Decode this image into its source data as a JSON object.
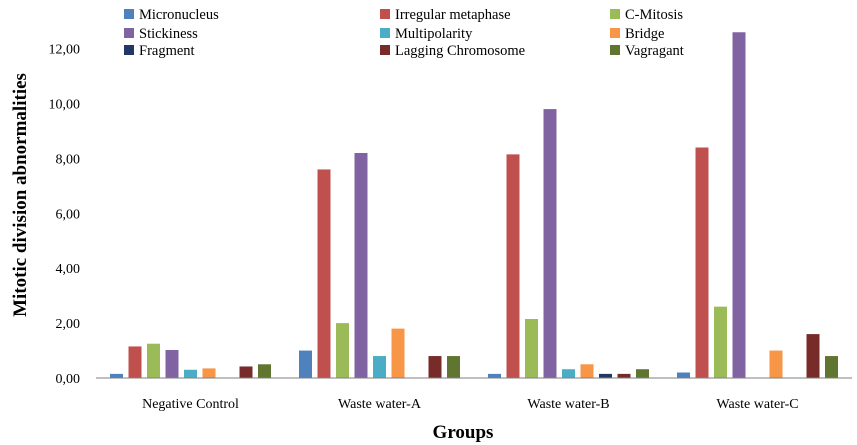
{
  "chart_data": {
    "type": "bar",
    "title": "",
    "xlabel": "Groups",
    "ylabel": "Mitotic division abnormalities",
    "categories": [
      "Negative Control",
      "Waste water-A",
      "Waste water-B",
      "Waste water-C"
    ],
    "ylim": [
      0,
      12.5
    ],
    "yticks": [
      "0,00",
      "2,00",
      "4,00",
      "6,00",
      "8,00",
      "10,00",
      "12,00"
    ],
    "grid": false,
    "legend_position": "top",
    "series": [
      {
        "name": "Micronucleus",
        "color": "#4F81BD",
        "values": [
          0.15,
          1.0,
          0.15,
          0.2
        ]
      },
      {
        "name": "Irregular metaphase",
        "color": "#C0504D",
        "values": [
          1.15,
          7.6,
          8.15,
          8.4
        ]
      },
      {
        "name": "C-Mitosis",
        "color": "#9BBB59",
        "values": [
          1.25,
          2.0,
          2.15,
          2.6
        ]
      },
      {
        "name": "Stickiness",
        "color": "#8064A2",
        "values": [
          1.02,
          8.2,
          9.8,
          12.6
        ]
      },
      {
        "name": "Multipolarity",
        "color": "#4BACC6",
        "values": [
          0.3,
          0.8,
          0.32,
          0
        ]
      },
      {
        "name": "Bridge",
        "color": "#F79646",
        "values": [
          0.35,
          1.8,
          0.5,
          1.0
        ]
      },
      {
        "name": "Fragment",
        "color": "#1F3864",
        "values": [
          0,
          0,
          0.15,
          0
        ]
      },
      {
        "name": "Lagging Chromosome",
        "color": "#772C2A",
        "values": [
          0.42,
          0.8,
          0.15,
          1.6
        ]
      },
      {
        "name": "Vagragant",
        "color": "#5F7530",
        "values": [
          0.5,
          0.8,
          0.32,
          0.8
        ]
      }
    ]
  }
}
